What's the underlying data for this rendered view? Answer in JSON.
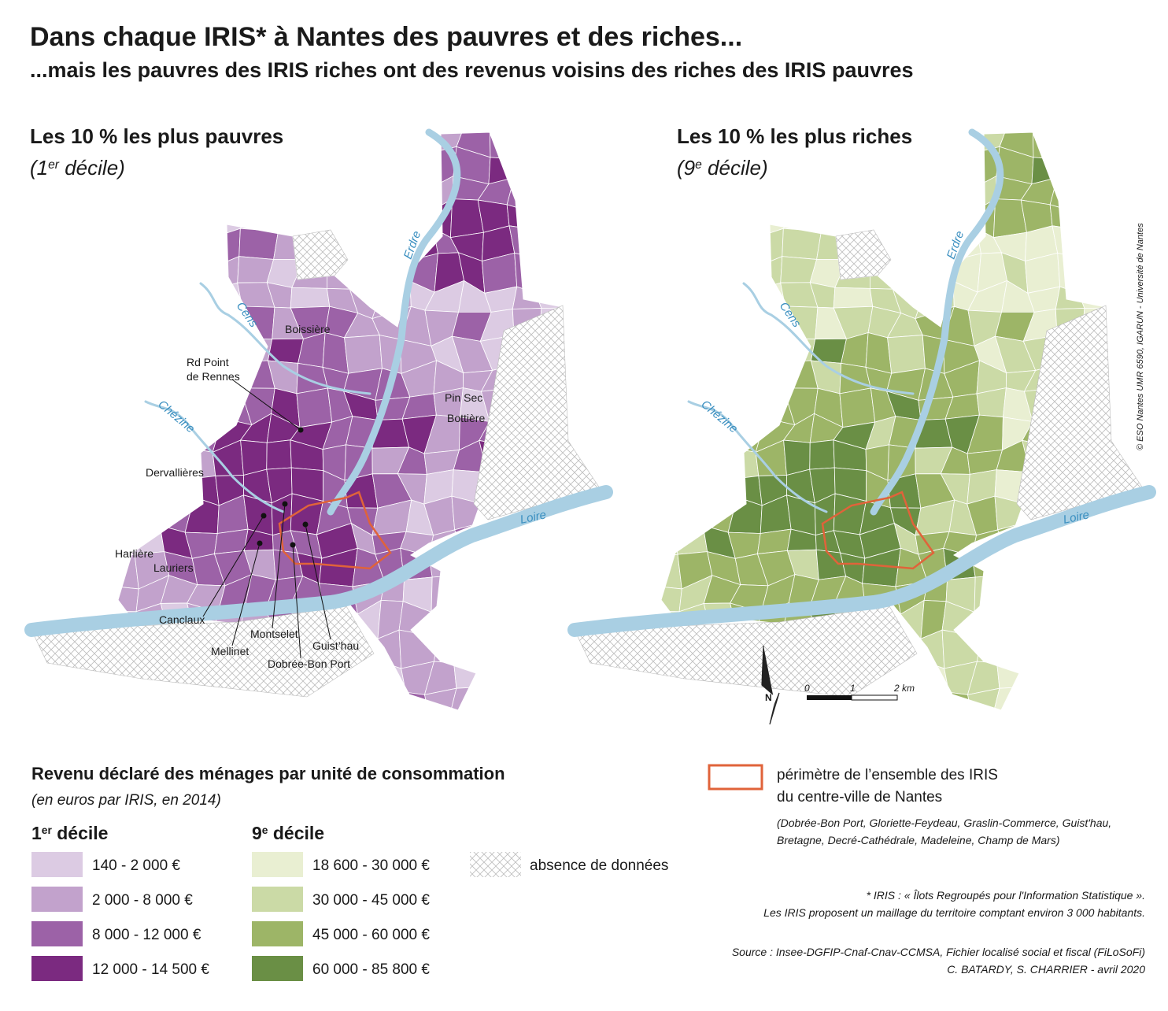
{
  "header": {
    "title": "Dans chaque IRIS* à Nantes des pauvres et des riches...",
    "subtitle": "...mais les pauvres des IRIS riches ont des revenus voisins des riches des IRIS pauvres"
  },
  "maps": [
    {
      "title": "Les 10 % les plus pauvres",
      "subtitle": [
        "(1",
        "er",
        " décile)"
      ],
      "rivers": [
        "Erdre",
        "Cens",
        "Chézine",
        "Loire"
      ],
      "places": [
        [
          "Boissière"
        ],
        [
          "Rd Point",
          "de Rennes"
        ],
        [
          "Pin Sec"
        ],
        [
          "Bottière"
        ],
        [
          "Dervallières"
        ],
        [
          "Harlière"
        ],
        [
          "Lauriers"
        ],
        [
          "Canclaux"
        ],
        [
          "Mellinet"
        ],
        [
          "Montselet"
        ],
        [
          "Dobrée-Bon Port"
        ],
        [
          "Guist’hau"
        ]
      ]
    },
    {
      "title": "Les 10 % les plus riches",
      "subtitle": [
        "(9",
        "e",
        " décile)"
      ],
      "rivers": [
        "Erdre",
        "Cens",
        "Chézine",
        "Loire"
      ],
      "places": []
    }
  ],
  "north": "N",
  "scale": [
    "0",
    "1",
    "2 km"
  ],
  "credit": "© ESO Nantes UMR 6590, IGARUN - Université de Nantes",
  "legend": {
    "title": "Revenu déclaré des ménages par unité de consommation",
    "subtitle": "(en euros par IRIS, en 2014)",
    "groups": [
      {
        "heading": [
          "1",
          "er",
          " décile"
        ],
        "classes": [
          {
            "label": "140 - 2 000 €",
            "color": "#dccbe3"
          },
          {
            "label": "2 000 - 8 000 €",
            "color": "#c2a2cc"
          },
          {
            "label": "8 000 - 12 000 €",
            "color": "#9c62a7"
          },
          {
            "label": "12 000 - 14 500 €",
            "color": "#7b2a80"
          }
        ]
      },
      {
        "heading": [
          "9",
          "e",
          " décile"
        ],
        "classes": [
          {
            "label": "18 600 - 30 000 €",
            "color": "#e9efd2"
          },
          {
            "label": "30 000 - 45 000 €",
            "color": "#cbdaa6"
          },
          {
            "label": "45 000 - 60 000 €",
            "color": "#9db567"
          },
          {
            "label": "60 000 - 85 800 €",
            "color": "#6a8f45"
          }
        ]
      }
    ],
    "no_data": "absence de données",
    "perimeter": {
      "lines": [
        "périmètre de l’ensemble des IRIS",
        "du centre-ville de Nantes"
      ],
      "detail": [
        "(Dobrée-Bon Port, Gloriette-Feydeau, Graslin-Commerce, Guist'hau,",
        "Bretagne, Decré-Cathédrale, Madeleine, Champ de Mars)"
      ]
    }
  },
  "note": [
    "* IRIS : « Îlots Regroupés pour l'Information Statistique ».",
    "Les IRIS proposent un maillage du territoire comptant environ 3 000 habitants."
  ],
  "source": [
    "Source : Insee-DGFIP-Cnaf-Cnav-CCMSA, Fichier localisé social et fiscal (FiLoSoFi)",
    "C. BATARDY, S. CHARRIER -  avril 2020"
  ]
}
